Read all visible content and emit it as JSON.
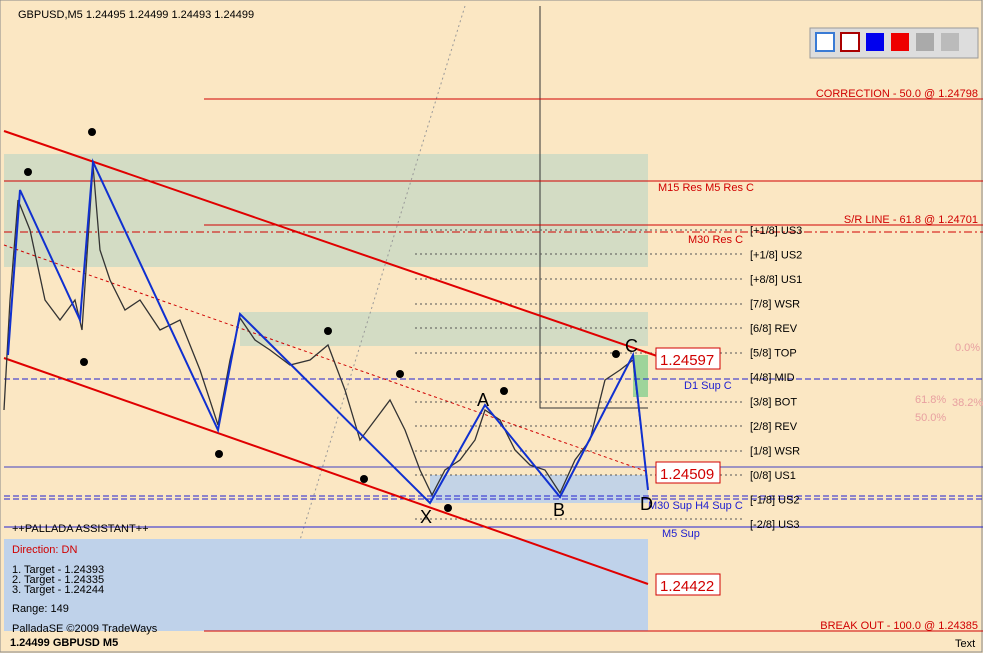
{
  "header": {
    "title": "GBPUSD,M5  1.24495 1.24499 1.24493 1.24499"
  },
  "levels": {
    "correction": "CORRECTION  -  50.0  @ 1.24798",
    "res": "M15 Res M5 Res C",
    "sr_line": "S/R LINE  -  61.8  @ 1.24701",
    "m30_res": "M30 Res C",
    "d1_sup": "D1 Sup C",
    "low_sup": "M30 Sup H4 Sup C",
    "m5_sup": "M5 Sup",
    "break_out": "BREAK OUT  -  100.0  @ 1.24385"
  },
  "murrey": [
    "[+1/8] US3",
    "[+1/8] US2",
    "[+8/8] US1",
    "[7/8]  WSR",
    "[6/8]  REV",
    "[5/8]  TOP",
    "[4/8]  MID",
    "[3/8]  BOT",
    "[2/8]  REV",
    "[1/8]  WSR",
    "[0/8]  US1",
    "[-1/8] US2",
    "[-2/8] US3"
  ],
  "price_boxes": [
    "1.24597",
    "1.24509",
    "1.24422"
  ],
  "pattern": [
    "X",
    "A",
    "B",
    "C",
    "D"
  ],
  "fib": [
    "0.0%",
    "61.8%",
    "50.0%",
    "38.2%"
  ],
  "panel": {
    "title": "++PALLADA ASSISTANT++",
    "direction": "Direction: DN",
    "targets": [
      "1. Target - 1.24393",
      "2. Target - 1.24335",
      "3. Target - 1.24244"
    ],
    "range": "Range: 149",
    "copyright": "PalladaSE ©2009 TradeWays",
    "footer": "1.24499 GBPUSD M5"
  },
  "corner": "Text"
}
